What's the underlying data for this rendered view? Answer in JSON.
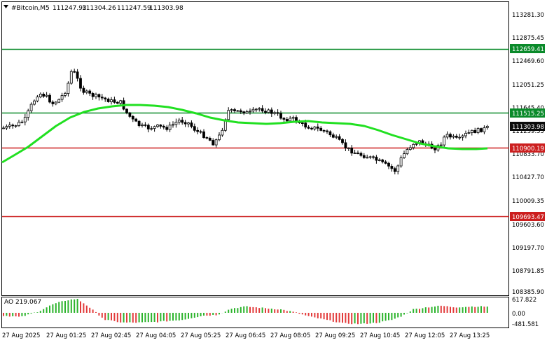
{
  "header": {
    "symbol": "#Bitcoin,M5",
    "open": "111247.93",
    "high": "111304.26",
    "low": "111247.59",
    "close": "111303.98"
  },
  "price_axis": {
    "ticks": [
      "113281.30",
      "112875.45",
      "112469.60",
      "112051.25",
      "111645.40",
      "111239.55",
      "110833.70",
      "110427.70",
      "110009.35",
      "109603.60",
      "109197.70",
      "108791.85",
      "108385.90"
    ]
  },
  "levels": [
    {
      "name": "level-green-upper",
      "value": "112659.41",
      "color": "#0a8a2a"
    },
    {
      "name": "level-green-lower",
      "value": "111515.25",
      "color": "#0a8a2a"
    },
    {
      "name": "level-red-upper",
      "value": "110900.19",
      "color": "#cc1f1f"
    },
    {
      "name": "level-red-lower",
      "value": "109693.47",
      "color": "#cc1f1f"
    }
  ],
  "current_price": {
    "value": "111303.98",
    "color": "#0b0b0b"
  },
  "oscillator": {
    "label": "AO 219.067",
    "ticks": [
      "617.822",
      "0.00",
      "-481.581"
    ]
  },
  "time_axis": {
    "labels": [
      "27 Aug 2025",
      "27 Aug 01:25",
      "27 Aug 02:45",
      "27 Aug 04:05",
      "27 Aug 05:25",
      "27 Aug 06:45",
      "27 Aug 08:05",
      "27 Aug 09:25",
      "27 Aug 10:45",
      "27 Aug 12:05",
      "27 Aug 13:25"
    ]
  },
  "colors": {
    "moving_average": "#21e021",
    "candles": "#000000",
    "ao_up": "#2bb32b",
    "ao_down": "#e23b3b"
  }
}
